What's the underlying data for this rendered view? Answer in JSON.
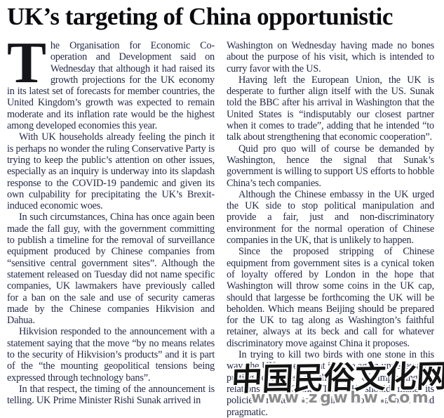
{
  "headline": "UK’s targeting of China opportunistic",
  "article": {
    "drop_cap": "T",
    "left": [
      "he Organisation for Economic Co-operation and Development said on Wednesday that although it had raised its growth projections for the UK economy in its latest set of forecasts for member countries, the United Kingdom’s growth was expected to remain moderate and its inflation rate would be the highest among developed economies this year.",
      "With UK households already feeling the pinch it is perhaps no wonder the ruling Conservative Party is trying to keep the public’s attention on other issues, especially as an inquiry is underway into its slapdash response to the COVID-19 pandemic and given its own culpability for precipitating the UK’s Brexit-induced economic woes.",
      "In such circumstances, China has once again been made the fall guy, with the government committing to publish a timeline for the removal of surveillance equipment produced by Chinese companies from “sensitive central government sites”. Although the statement released on Tuesday did not name specific companies, UK lawmakers have previously called for a ban on the sale and use of security cameras made by the Chinese companies Hikvision and Dahua.",
      "Hikvision responded to the announcement with a statement saying that the move “by no means relates to the security of Hikvision’s products” and it is part of the “the mounting geopolitical tensions being expressed through technology bans”.",
      "In that respect, the timing of the announcement is telling. UK Prime Minister Rishi Sunak arrived in"
    ],
    "right": [
      "Washington on Wednesday having made no bones about the purpose of his visit, which is intended to curry favor with the US.",
      "Having left the European Union, the UK is desperate to further align itself with the US. Sunak told the BBC after his arrival in Washington that the United States is “indisputably our closest partner when it comes to trade”, adding that he intended “to talk about strengthening that economic cooperation”.",
      "Quid pro quo will of course be demanded by Washington, hence the signal that Sunak’s government is willing to support US efforts to hobble China’s tech companies.",
      "Although the Chinese embassy in the UK urged the UK side to stop political manipulation and provide a fair, just and non-discriminatory environment for the normal operation of Chinese companies in the UK, that is unlikely to happen.",
      "Since the proposed stripping of Chinese equipment from government sites is a cynical token of loyalty offered by London in the hope that Washington will throw some coins in the UK cap, should that largesse be forthcoming the UK will be beholden. Which means Beijing should be prepared for the UK to tag along as Washington’s faithful retainer, always at its beck and call for whatever discriminatory move against China it proposes.",
      "In trying to kill two birds with one stone in this way, the UK government is once again unnecessarily putting obstacles in the way of improving its relations with China. The UK should make its policies related to China more rational and pragmatic."
    ]
  },
  "watermark": {
    "site_name": "中国民俗文化网",
    "site_url": "www.zgwhw.com"
  },
  "colors": {
    "background": "#ffffff",
    "headline_text": "#0b0b10",
    "body_text": "#242947",
    "watermark_ink": "#141414",
    "watermark_url": "#8c8c8c"
  }
}
